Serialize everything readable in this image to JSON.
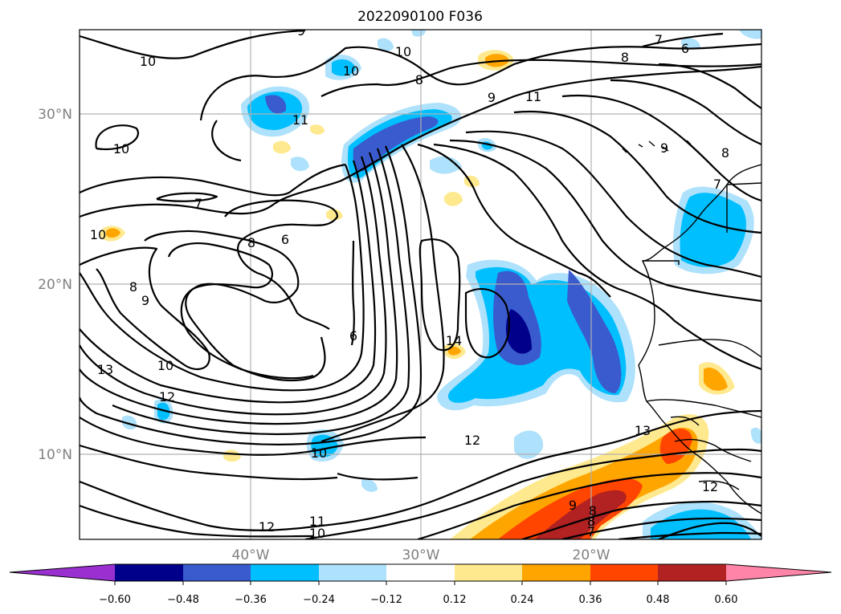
{
  "title": "2022090100 F036",
  "lat_labels": [
    "30°N",
    "20°N",
    "10°N"
  ],
  "lon_labels": [
    "40°W",
    "30°W",
    "20°W"
  ],
  "colorbar": {
    "tick_labels": [
      "−0.60",
      "−0.48",
      "−0.36",
      "−0.24",
      "−0.12",
      "0.12",
      "0.24",
      "0.36",
      "0.48",
      "0.60"
    ],
    "colors": [
      "#9b30d0",
      "#00008b",
      "#3a5bcd",
      "#00bfff",
      "#aee1fb",
      "#ffffff",
      "#ffe98e",
      "#ffa500",
      "#ff4500",
      "#b22222",
      "#ff85a8"
    ]
  },
  "contour_labels": [
    "9",
    "10",
    "10",
    "10",
    "11",
    "10",
    "8",
    "9",
    "11",
    "8",
    "7",
    "6",
    "8",
    "9",
    "7",
    "7",
    "6",
    "8",
    "8",
    "9",
    "10",
    "6",
    "14",
    "13",
    "10",
    "12",
    "12",
    "13",
    "10",
    "12",
    "11",
    "10",
    "9",
    "8",
    "7",
    "8",
    "12"
  ],
  "colors": {
    "grid": "#b0b0b0",
    "contour": "#000000",
    "coast": "#000000"
  }
}
